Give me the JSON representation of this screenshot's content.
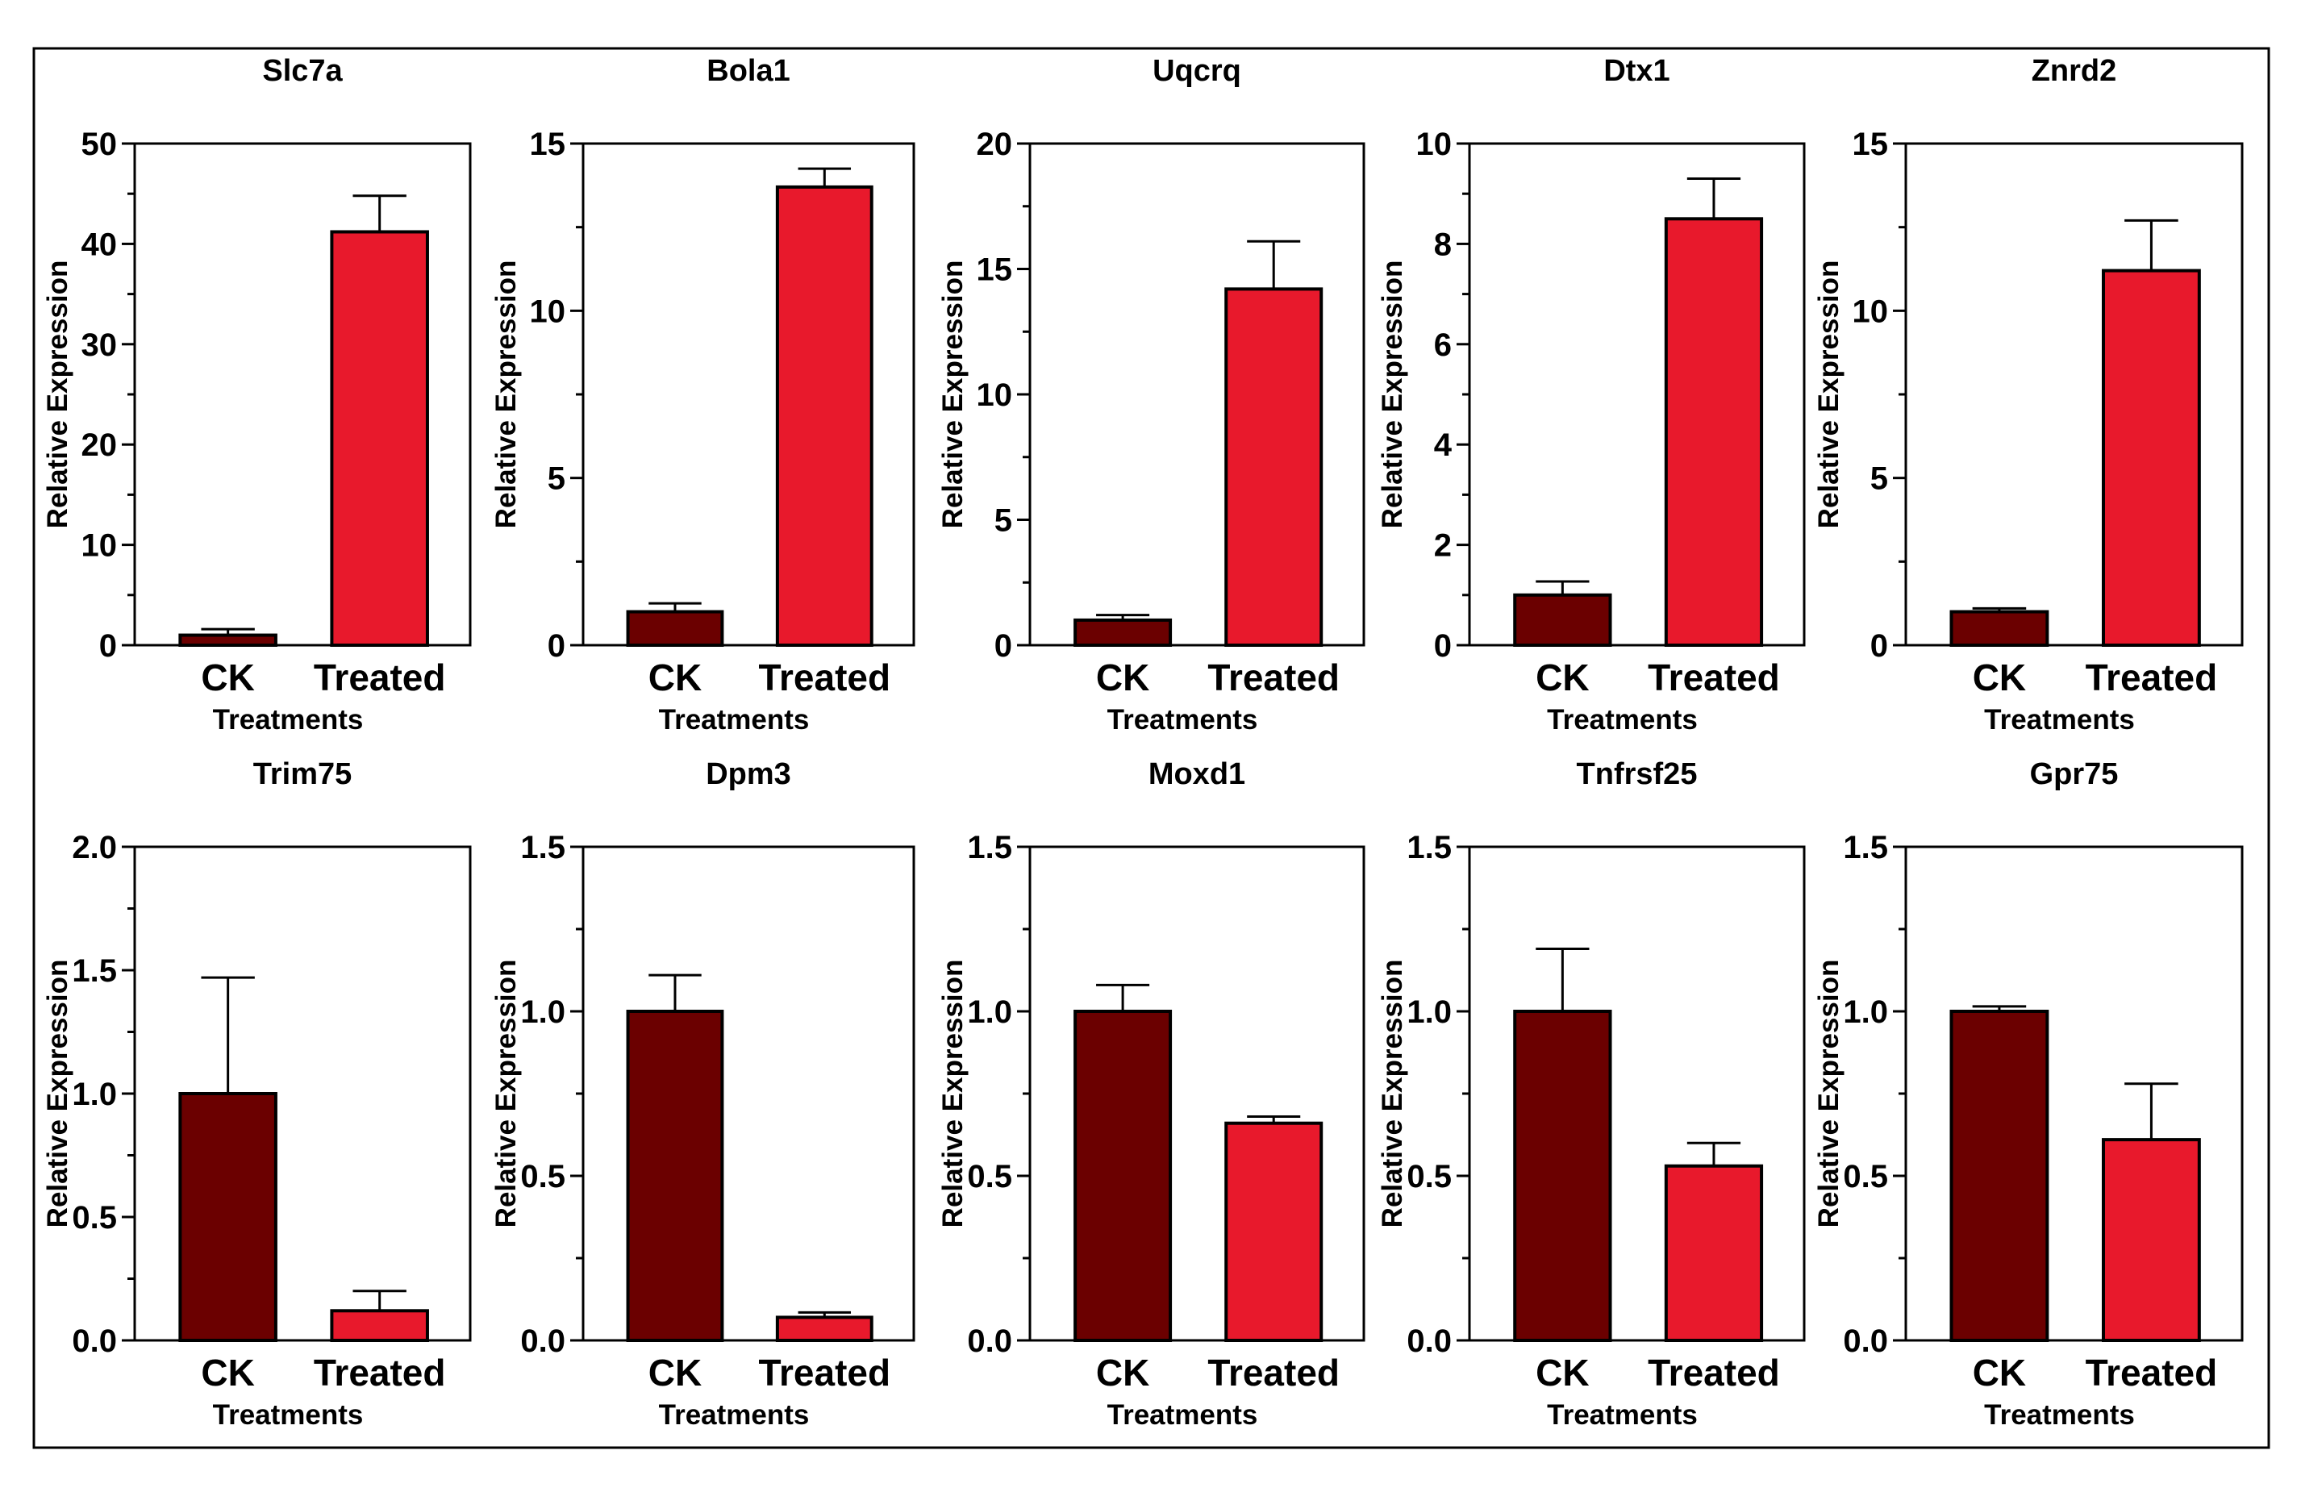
{
  "colors": {
    "ck_bar": "#6b0000",
    "treated_bar": "#e8192c",
    "axis": "#000000",
    "frame": "#000000",
    "background": "#ffffff"
  },
  "chart_data": [
    {
      "type": "bar",
      "title": "Slc7a",
      "xlabel": "Treatments",
      "ylabel": "Relative Expression",
      "categories": [
        "CK",
        "Treated"
      ],
      "values": [
        1.0,
        41.2
      ],
      "errors": [
        0.6,
        3.6
      ],
      "ylim": [
        0,
        50
      ],
      "yticks": [
        0,
        10,
        20,
        30,
        40,
        50
      ],
      "ytick_labels": [
        "0",
        "10",
        "20",
        "30",
        "40",
        "50"
      ],
      "grid": false
    },
    {
      "type": "bar",
      "title": "Bola1",
      "xlabel": "Treatments",
      "ylabel": "Relative Expression",
      "categories": [
        "CK",
        "Treated"
      ],
      "values": [
        1.0,
        13.7
      ],
      "errors": [
        0.25,
        0.55
      ],
      "ylim": [
        0,
        15
      ],
      "yticks": [
        0,
        5,
        10,
        15
      ],
      "ytick_labels": [
        "0",
        "5",
        "10",
        "15"
      ],
      "grid": false
    },
    {
      "type": "bar",
      "title": "Uqcrq",
      "xlabel": "Treatments",
      "ylabel": "Relative Expression",
      "categories": [
        "CK",
        "Treated"
      ],
      "values": [
        1.0,
        14.2
      ],
      "errors": [
        0.2,
        1.9
      ],
      "ylim": [
        0,
        20
      ],
      "yticks": [
        0,
        5,
        10,
        15,
        20
      ],
      "ytick_labels": [
        "0",
        "5",
        "10",
        "15",
        "20"
      ],
      "grid": false
    },
    {
      "type": "bar",
      "title": "Dtx1",
      "xlabel": "Treatments",
      "ylabel": "Relative Expression",
      "categories": [
        "CK",
        "Treated"
      ],
      "values": [
        1.0,
        8.5
      ],
      "errors": [
        0.27,
        0.8
      ],
      "ylim": [
        0,
        10
      ],
      "yticks": [
        0,
        2,
        4,
        6,
        8,
        10
      ],
      "ytick_labels": [
        "0",
        "2",
        "4",
        "6",
        "8",
        "10"
      ],
      "grid": false
    },
    {
      "type": "bar",
      "title": "Znrd2",
      "xlabel": "Treatments",
      "ylabel": "Relative Expression",
      "categories": [
        "CK",
        "Treated"
      ],
      "values": [
        1.0,
        11.2
      ],
      "errors": [
        0.1,
        1.5
      ],
      "ylim": [
        0,
        15
      ],
      "yticks": [
        0,
        5,
        10,
        15
      ],
      "ytick_labels": [
        "0",
        "5",
        "10",
        "15"
      ],
      "grid": false
    },
    {
      "type": "bar",
      "title": "Trim75",
      "xlabel": "Treatments",
      "ylabel": "Relative Expression",
      "categories": [
        "CK",
        "Treated"
      ],
      "values": [
        1.0,
        0.12
      ],
      "errors": [
        0.47,
        0.08
      ],
      "ylim": [
        0,
        2.0
      ],
      "yticks": [
        0,
        0.5,
        1.0,
        1.5,
        2.0
      ],
      "ytick_labels": [
        "0.0",
        "0.5",
        "1.0",
        "1.5",
        "2.0"
      ],
      "grid": false
    },
    {
      "type": "bar",
      "title": "Dpm3",
      "xlabel": "Treatments",
      "ylabel": "Relative Expression",
      "categories": [
        "CK",
        "Treated"
      ],
      "values": [
        1.0,
        0.07
      ],
      "errors": [
        0.11,
        0.015
      ],
      "ylim": [
        0,
        1.5
      ],
      "yticks": [
        0,
        0.5,
        1.0,
        1.5
      ],
      "ytick_labels": [
        "0.0",
        "0.5",
        "1.0",
        "1.5"
      ],
      "grid": false
    },
    {
      "type": "bar",
      "title": "Moxd1",
      "xlabel": "Treatments",
      "ylabel": "Relative Expression",
      "categories": [
        "CK",
        "Treated"
      ],
      "values": [
        1.0,
        0.66
      ],
      "errors": [
        0.08,
        0.02
      ],
      "ylim": [
        0,
        1.5
      ],
      "yticks": [
        0,
        0.5,
        1.0,
        1.5
      ],
      "ytick_labels": [
        "0.0",
        "0.5",
        "1.0",
        "1.5"
      ],
      "grid": false
    },
    {
      "type": "bar",
      "title": "Tnfrsf25",
      "xlabel": "Treatments",
      "ylabel": "Relative Expression",
      "categories": [
        "CK",
        "Treated"
      ],
      "values": [
        1.0,
        0.53
      ],
      "errors": [
        0.19,
        0.07
      ],
      "ylim": [
        0,
        1.5
      ],
      "yticks": [
        0,
        0.5,
        1.0,
        1.5
      ],
      "ytick_labels": [
        "0.0",
        "0.5",
        "1.0",
        "1.5"
      ],
      "grid": false
    },
    {
      "type": "bar",
      "title": "Gpr75",
      "xlabel": "Treatments",
      "ylabel": "Relative Expression",
      "categories": [
        "CK",
        "Treated"
      ],
      "values": [
        1.0,
        0.61
      ],
      "errors": [
        0.015,
        0.17
      ],
      "ylim": [
        0,
        1.5
      ],
      "yticks": [
        0,
        0.5,
        1.0,
        1.5
      ],
      "ytick_labels": [
        "0.0",
        "0.5",
        "1.0",
        "1.5"
      ],
      "grid": false
    }
  ]
}
